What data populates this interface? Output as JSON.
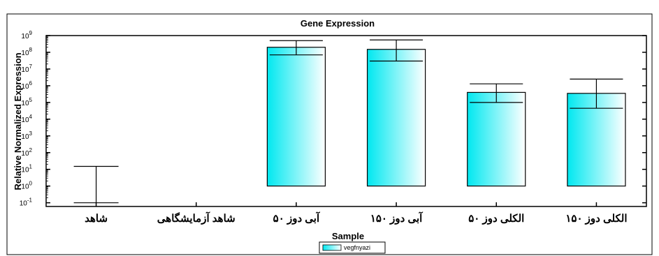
{
  "chart_data": {
    "type": "bar",
    "title": "Gene Expression",
    "xlabel": "Sample",
    "ylabel": "Relative Normalized Expression",
    "y_scale": "log",
    "ylim": [
      0.06,
      1000000000
    ],
    "y_ticks": [
      {
        "value": 0.1,
        "base": "10",
        "exp": "-1"
      },
      {
        "value": 1,
        "base": "10",
        "exp": "0"
      },
      {
        "value": 10,
        "base": "10",
        "exp": "1"
      },
      {
        "value": 100,
        "base": "10",
        "exp": "2"
      },
      {
        "value": 1000,
        "base": "10",
        "exp": "3"
      },
      {
        "value": 10000,
        "base": "10",
        "exp": "4"
      },
      {
        "value": 100000,
        "base": "10",
        "exp": "5"
      },
      {
        "value": 1000000,
        "base": "10",
        "exp": "6"
      },
      {
        "value": 10000000,
        "base": "10",
        "exp": "7"
      },
      {
        "value": 100000000,
        "base": "10",
        "exp": "8"
      },
      {
        "value": 1000000000,
        "base": "10",
        "exp": "9"
      }
    ],
    "categories": [
      "شاهد",
      "شاهد آزمایشگاهی",
      "آبی دوز ۵۰",
      "آبی دوز ۱۵۰",
      "الکلی دوز ۵۰",
      "الکلی دوز ۱۵۰"
    ],
    "series": [
      {
        "name": "vegfnyazi",
        "values": [
          0.9,
          null,
          200000000,
          150000000,
          400000,
          350000
        ],
        "error_low": [
          0.1,
          null,
          70000000,
          30000000,
          100000,
          45000
        ],
        "error_high": [
          15,
          null,
          500000000,
          550000000,
          1300000,
          2500000
        ]
      }
    ],
    "bar_baseline": 1,
    "colors": {
      "bar_light": "#ffffff",
      "bar_dark": "#00e8f0",
      "axis": "#000000"
    },
    "grid": false,
    "legend_position": "bottom-center"
  }
}
